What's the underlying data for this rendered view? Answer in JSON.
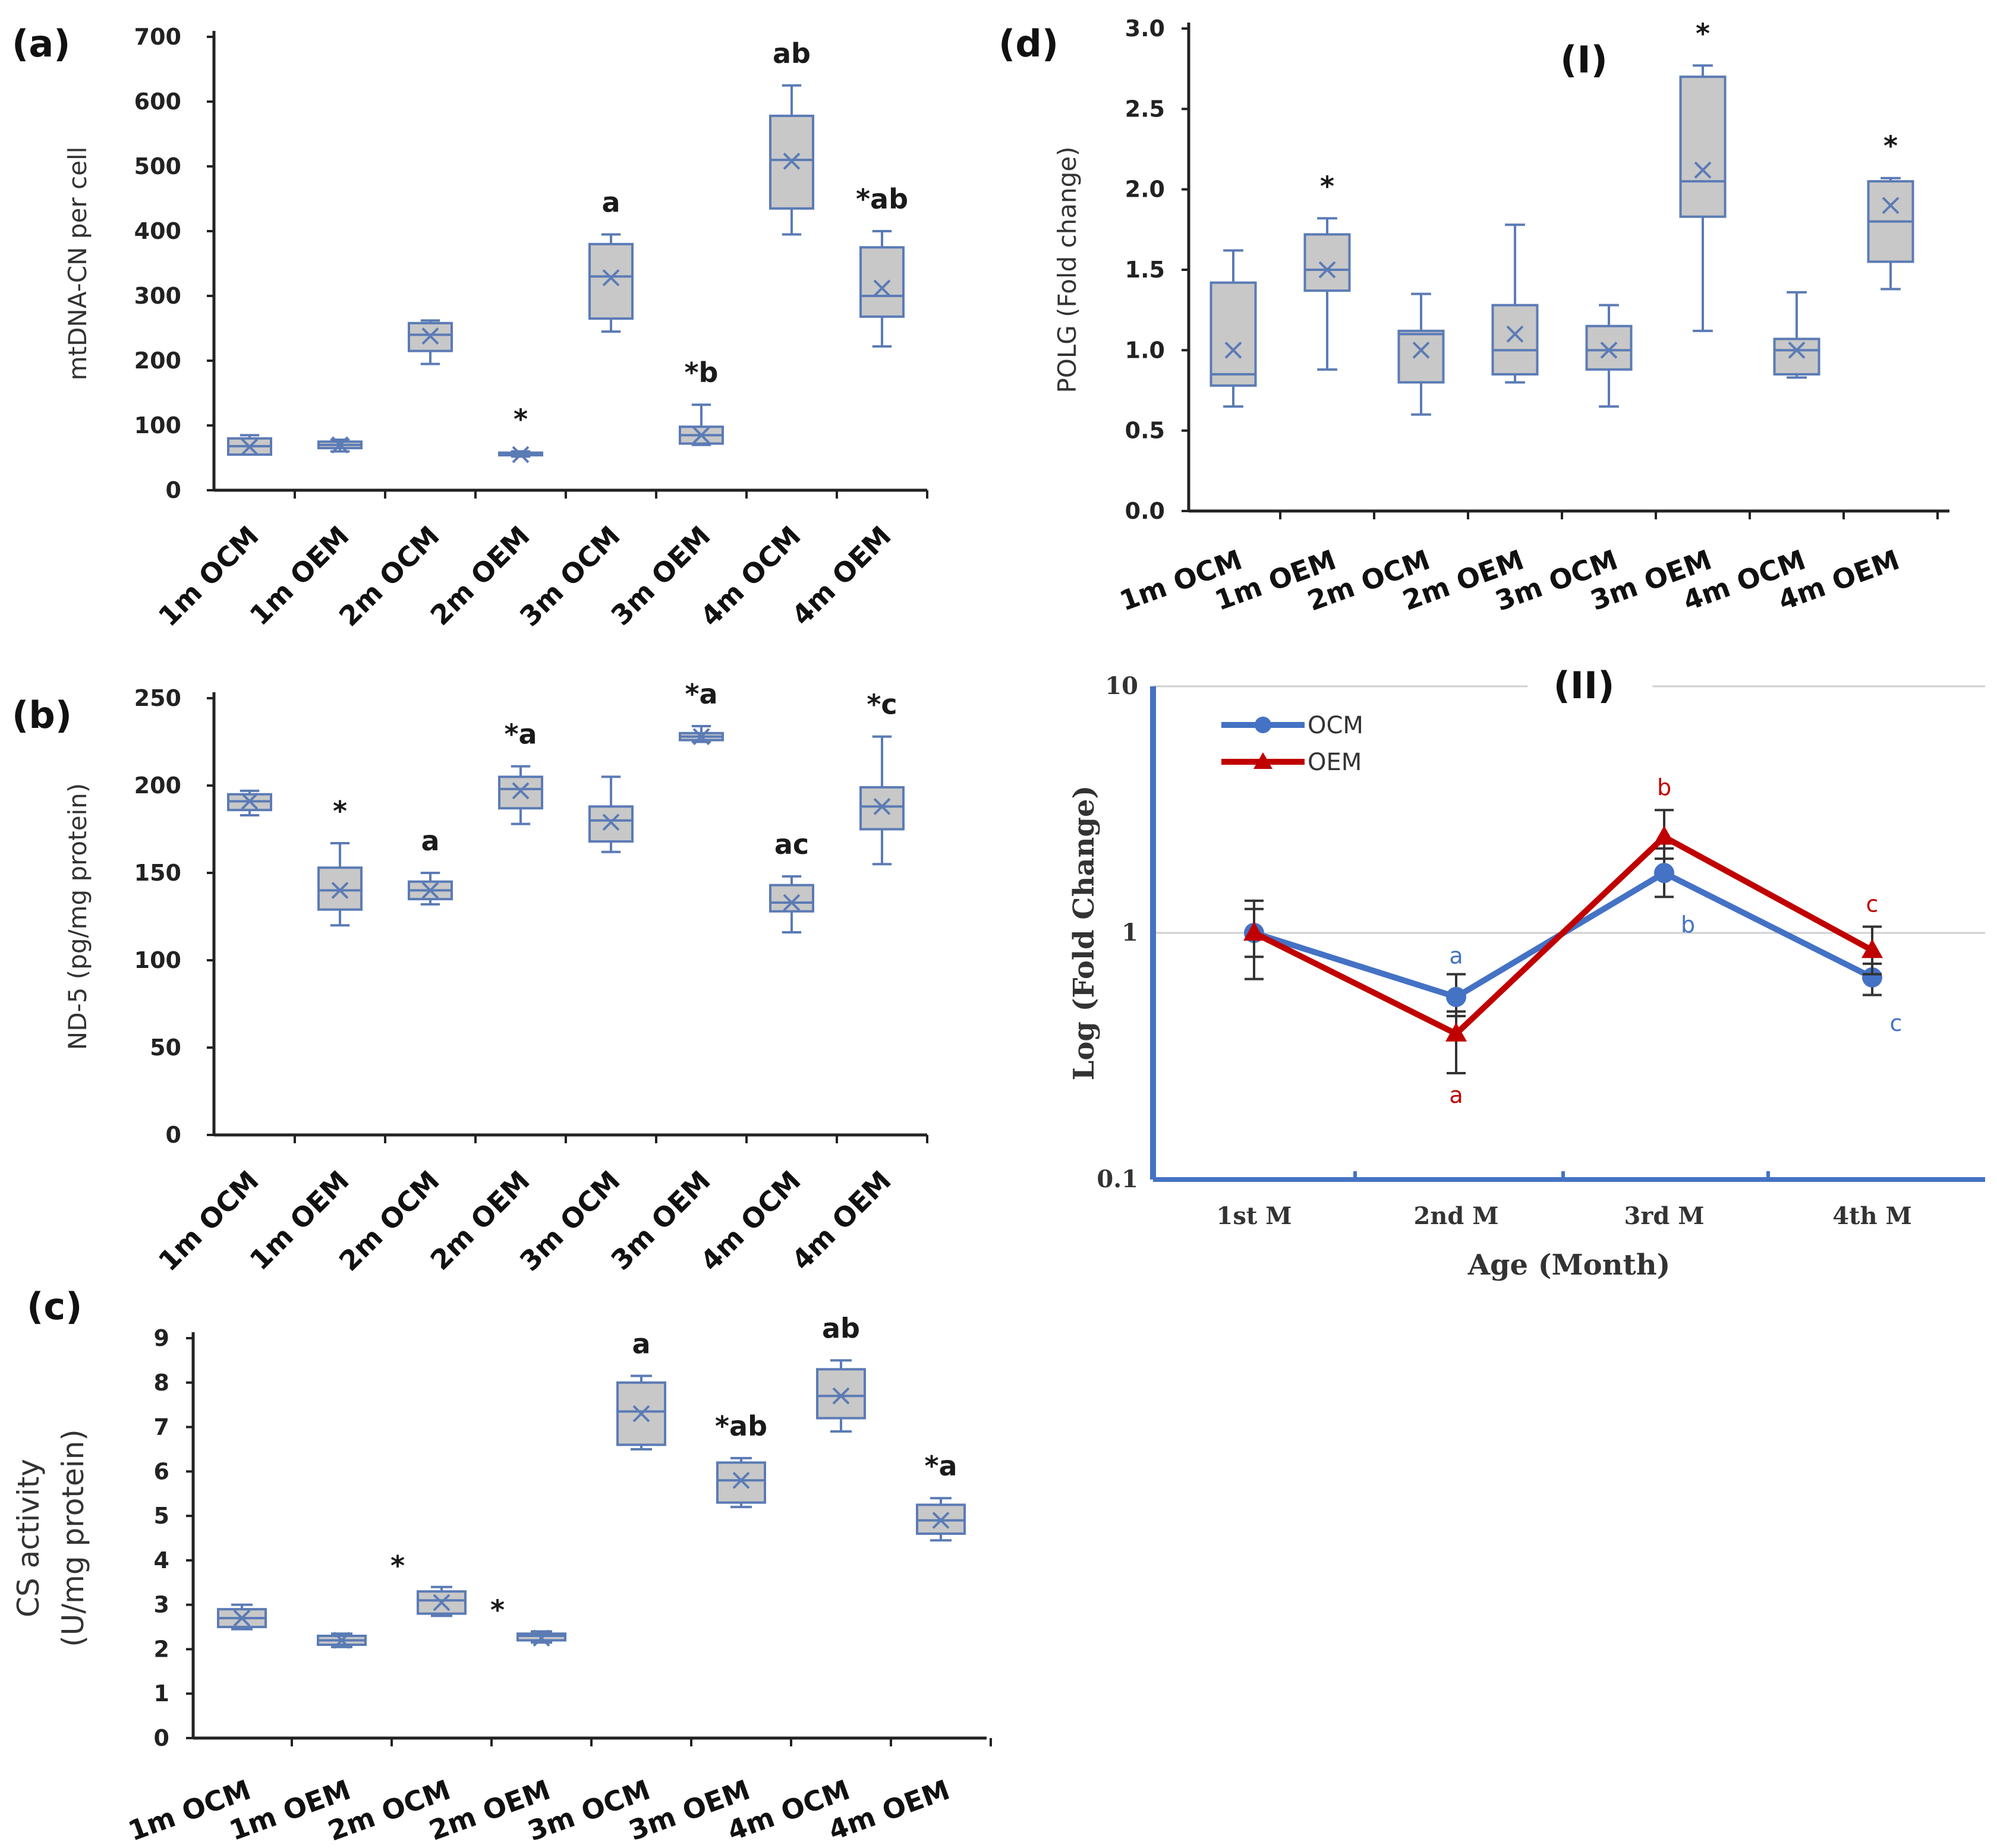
{
  "chart_data": [
    {
      "id": "a",
      "panel_label": "(a)",
      "type": "box",
      "ylabel": "mtDNA-CN per cell",
      "ylim": [
        0,
        700
      ],
      "yticks": [
        0,
        100,
        200,
        300,
        400,
        500,
        600,
        700
      ],
      "categories": [
        "1m OCM",
        "1m OEM",
        "2m OCM",
        "2m OEM",
        "3m OCM",
        "3m OEM",
        "4m OCM",
        "4m OEM"
      ],
      "boxes": [
        {
          "min": 55,
          "q1": 55,
          "median": 68,
          "q3": 80,
          "max": 85,
          "mean": 67,
          "label": ""
        },
        {
          "min": 60,
          "q1": 65,
          "median": 70,
          "q3": 75,
          "max": 78,
          "mean": 70,
          "label": ""
        },
        {
          "min": 195,
          "q1": 215,
          "median": 240,
          "q3": 258,
          "max": 262,
          "mean": 238,
          "label": ""
        },
        {
          "min": 52,
          "q1": 54,
          "median": 56,
          "q3": 58,
          "max": 60,
          "mean": 55,
          "label": "*"
        },
        {
          "min": 245,
          "q1": 265,
          "median": 330,
          "q3": 380,
          "max": 395,
          "mean": 328,
          "label": "a"
        },
        {
          "min": 70,
          "q1": 72,
          "median": 85,
          "q3": 98,
          "max": 132,
          "mean": 85,
          "label": "*b"
        },
        {
          "min": 395,
          "q1": 435,
          "median": 510,
          "q3": 578,
          "max": 625,
          "mean": 508,
          "label": "ab"
        },
        {
          "min": 222,
          "q1": 268,
          "median": 300,
          "q3": 375,
          "max": 400,
          "mean": 312,
          "label": "*ab"
        }
      ]
    },
    {
      "id": "b",
      "panel_label": "(b)",
      "type": "box",
      "ylabel": "ND-5 (pg/mg protein)",
      "ylim": [
        0,
        250
      ],
      "yticks": [
        0,
        50,
        100,
        150,
        200,
        250
      ],
      "categories": [
        "1m OCM",
        "1m OEM",
        "2m OCM",
        "2m OEM",
        "3m OCM",
        "3m OEM",
        "4m OCM",
        "4m OEM"
      ],
      "boxes": [
        {
          "min": 183,
          "q1": 186,
          "median": 191,
          "q3": 195,
          "max": 197,
          "mean": 191,
          "label": ""
        },
        {
          "min": 120,
          "q1": 129,
          "median": 140,
          "q3": 153,
          "max": 167,
          "mean": 140,
          "label": "*"
        },
        {
          "min": 132,
          "q1": 135,
          "median": 140,
          "q3": 145,
          "max": 150,
          "mean": 140,
          "label": "a"
        },
        {
          "min": 178,
          "q1": 187,
          "median": 198,
          "q3": 205,
          "max": 211,
          "mean": 197,
          "label": "*a"
        },
        {
          "min": 162,
          "q1": 168,
          "median": 180,
          "q3": 188,
          "max": 205,
          "mean": 179,
          "label": ""
        },
        {
          "min": 225,
          "q1": 226,
          "median": 228,
          "q3": 230,
          "max": 234,
          "mean": 228,
          "label": "*a"
        },
        {
          "min": 116,
          "q1": 128,
          "median": 133,
          "q3": 143,
          "max": 148,
          "mean": 133,
          "label": "ac"
        },
        {
          "min": 155,
          "q1": 175,
          "median": 188,
          "q3": 199,
          "max": 228,
          "mean": 188,
          "label": "*c"
        }
      ]
    },
    {
      "id": "c",
      "panel_label": "(c)",
      "type": "box",
      "ylabel": "CS  activity",
      "ylabel2": "(U/mg protein)",
      "ylim": [
        0,
        9
      ],
      "yticks": [
        0,
        1,
        2,
        3,
        4,
        5,
        6,
        7,
        8,
        9
      ],
      "categories": [
        "1m OCM",
        "1m OEM",
        "2m OCM",
        "2m OEM",
        "3m OCM",
        "3m OEM",
        "4m OCM",
        "4m OEM"
      ],
      "boxes": [
        {
          "min": 2.45,
          "q1": 2.5,
          "median": 2.7,
          "q3": 2.9,
          "max": 3.0,
          "mean": 2.7,
          "label": ""
        },
        {
          "min": 2.05,
          "q1": 2.1,
          "median": 2.2,
          "q3": 2.3,
          "max": 2.35,
          "mean": 2.2,
          "label": ""
        },
        {
          "min": 2.75,
          "q1": 2.8,
          "median": 3.1,
          "q3": 3.3,
          "max": 3.4,
          "mean": 3.05,
          "label": "*"
        },
        {
          "min": 2.15,
          "q1": 2.2,
          "median": 2.3,
          "q3": 2.35,
          "max": 2.4,
          "mean": 2.25,
          "label": "*"
        },
        {
          "min": 6.5,
          "q1": 6.6,
          "median": 7.35,
          "q3": 8.0,
          "max": 8.15,
          "mean": 7.3,
          "label": "a"
        },
        {
          "min": 5.2,
          "q1": 5.3,
          "median": 5.8,
          "q3": 6.2,
          "max": 6.3,
          "mean": 5.8,
          "label": "*ab"
        },
        {
          "min": 6.9,
          "q1": 7.2,
          "median": 7.7,
          "q3": 8.3,
          "max": 8.5,
          "mean": 7.7,
          "label": "ab"
        },
        {
          "min": 4.45,
          "q1": 4.6,
          "median": 4.9,
          "q3": 5.25,
          "max": 5.4,
          "mean": 4.9,
          "label": "*a"
        }
      ]
    },
    {
      "id": "d",
      "panel_label": "(d)",
      "subtitle": "(I)",
      "type": "box",
      "ylabel": "POLG (Fold change)",
      "ylim": [
        0,
        3.0
      ],
      "yticks": [
        "0.0",
        "0.5",
        "1.0",
        "1.5",
        "2.0",
        "2.5",
        "3.0"
      ],
      "categories": [
        "1m OCM",
        "1m OEM",
        "2m OCM",
        "2m OEM",
        "3m OCM",
        "3m OEM",
        "4m OCM",
        "4m OEM"
      ],
      "boxes": [
        {
          "min": 0.65,
          "q1": 0.78,
          "median": 0.85,
          "q3": 1.42,
          "max": 1.62,
          "mean": 1.0,
          "label": ""
        },
        {
          "min": 0.88,
          "q1": 1.37,
          "median": 1.5,
          "q3": 1.72,
          "max": 1.82,
          "mean": 1.5,
          "label": "*"
        },
        {
          "min": 0.6,
          "q1": 0.8,
          "median": 1.1,
          "q3": 1.12,
          "max": 1.35,
          "mean": 1.0,
          "label": ""
        },
        {
          "min": 0.8,
          "q1": 0.85,
          "median": 1.0,
          "q3": 1.28,
          "max": 1.78,
          "mean": 1.1,
          "label": ""
        },
        {
          "min": 0.65,
          "q1": 0.88,
          "median": 1.0,
          "q3": 1.15,
          "max": 1.28,
          "mean": 1.0,
          "label": ""
        },
        {
          "min": 1.12,
          "q1": 1.83,
          "median": 2.05,
          "q3": 2.7,
          "max": 2.77,
          "mean": 2.12,
          "label": "*"
        },
        {
          "min": 0.83,
          "q1": 0.85,
          "median": 1.0,
          "q3": 1.07,
          "max": 1.36,
          "mean": 1.0,
          "label": ""
        },
        {
          "min": 1.38,
          "q1": 1.55,
          "median": 1.8,
          "q3": 2.05,
          "max": 2.07,
          "mean": 1.9,
          "label": "*"
        }
      ]
    },
    {
      "id": "d2",
      "subtitle": "(II)",
      "type": "line",
      "yscale": "log",
      "ylim": [
        0.1,
        10
      ],
      "yticks": [
        "0.1",
        "1",
        "10"
      ],
      "xlabel": "Age (Month)",
      "ylabel": "Log (Fold Change)",
      "x": [
        "1st M",
        "2nd M",
        "3rd M",
        "4th M"
      ],
      "legend_position": "top-left",
      "series": [
        {
          "name": "OCM",
          "color": "#4472C4",
          "marker": "circle",
          "values": [
            1.0,
            0.55,
            1.75,
            0.66
          ],
          "err_hi": [
            1.35,
            0.68,
            2.2,
            0.75
          ],
          "err_lo": [
            0.65,
            0.46,
            1.4,
            0.56
          ],
          "labels": [
            "",
            "a",
            "b",
            "c"
          ]
        },
        {
          "name": "OEM",
          "color": "#C00000",
          "marker": "triangle",
          "values": [
            1.0,
            0.39,
            2.45,
            0.85
          ],
          "err_hi": [
            1.25,
            0.48,
            3.15,
            1.06
          ],
          "err_lo": [
            0.8,
            0.27,
            2.0,
            0.68
          ],
          "labels": [
            "",
            "a",
            "b",
            "c"
          ]
        }
      ]
    }
  ]
}
